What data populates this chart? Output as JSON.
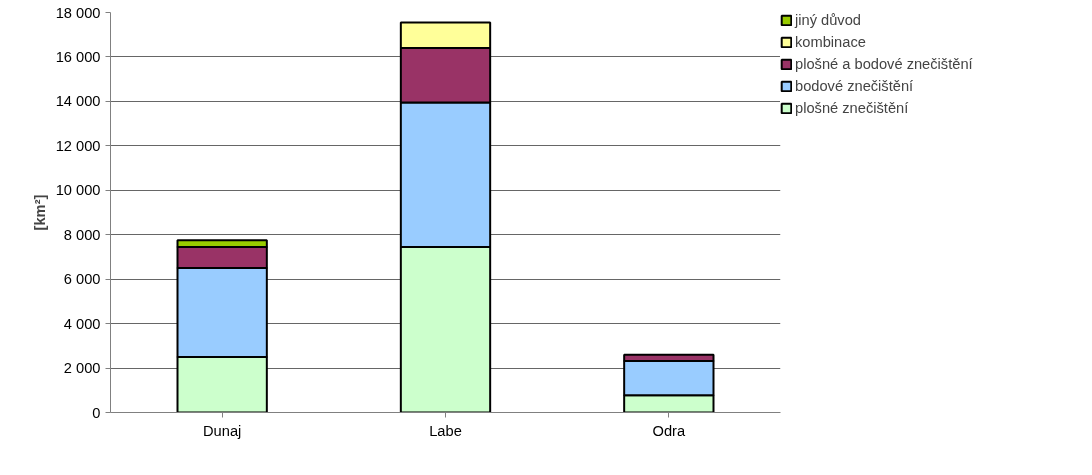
{
  "chart_data": {
    "type": "bar",
    "stacked": true,
    "ylabel": "[km²]",
    "categories": [
      "Dunaj",
      "Labe",
      "Odra"
    ],
    "series": [
      {
        "name": "plošné znečištění",
        "color": "#ccffcc",
        "values": [
          2500,
          7450,
          780
        ]
      },
      {
        "name": "bodové znečištění",
        "color": "#99ccff",
        "values": [
          4000,
          6500,
          1540
        ]
      },
      {
        "name": "plošné a bodové znečištění",
        "color": "#993366",
        "values": [
          950,
          2450,
          280
        ]
      },
      {
        "name": "kombinace",
        "color": "#ffff99",
        "values": [
          null,
          1150,
          null
        ]
      },
      {
        "name": "jiný důvod",
        "color": "#99cc00",
        "values": [
          300,
          null,
          null
        ]
      }
    ],
    "ylim": [
      0,
      18000
    ],
    "yticks": [
      0,
      {
        "value": 2000,
        "label": "2 000"
      },
      {
        "value": 4000,
        "label": "4 000"
      },
      {
        "value": 6000,
        "label": "6 000"
      },
      {
        "value": 8000,
        "label": "8 000"
      },
      {
        "value": 10000,
        "label": "10 000"
      },
      {
        "value": 12000,
        "label": "12 000"
      },
      {
        "value": 14000,
        "label": "14 000"
      },
      {
        "value": 16000,
        "label": "16 000"
      },
      {
        "value": 18000,
        "label": "18 000"
      }
    ],
    "grid": "y",
    "legend": "right"
  }
}
